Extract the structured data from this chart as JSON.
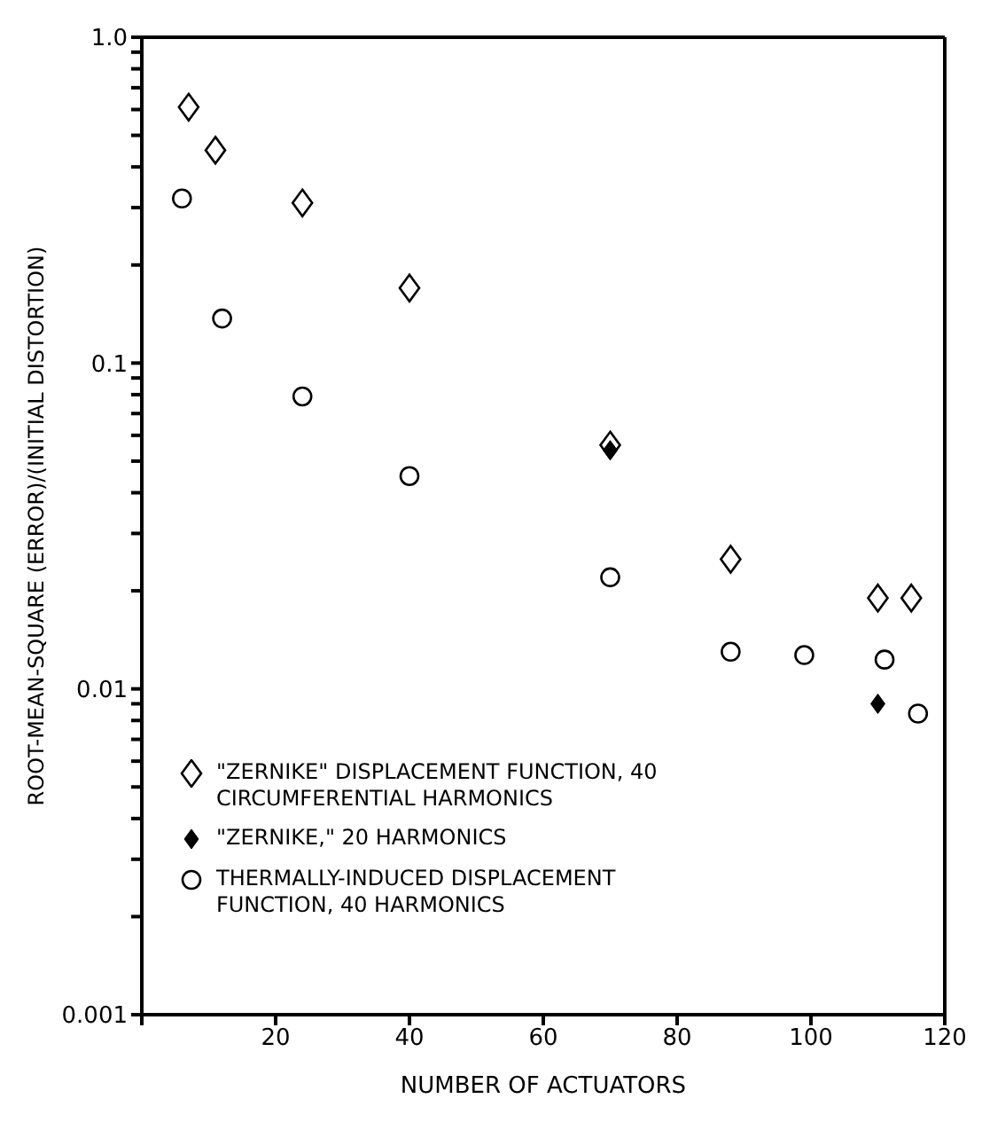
{
  "chart_data": {
    "type": "scatter",
    "xlabel": "NUMBER OF ACTUATORS",
    "ylabel": "ROOT-MEAN-SQUARE (ERROR)/(INITIAL DISTORTION)",
    "xlim": [
      0,
      120
    ],
    "xticks": [
      {
        "value": 0,
        "label": null
      },
      20,
      40,
      60,
      80,
      100,
      120
    ],
    "ylim": [
      0.001,
      1
    ],
    "yticks": [
      {
        "value": 0.001,
        "label": "0.001"
      },
      {
        "value": 0.002,
        "label": null
      },
      {
        "value": 0.003,
        "label": null
      },
      {
        "value": 0.004,
        "label": null
      },
      {
        "value": 0.005,
        "label": null
      },
      {
        "value": 0.006,
        "label": null
      },
      {
        "value": 0.007,
        "label": null
      },
      {
        "value": 0.008,
        "label": null
      },
      {
        "value": 0.009,
        "label": null
      },
      {
        "value": 0.01,
        "label": "0.01"
      },
      {
        "value": 0.02,
        "label": null
      },
      {
        "value": 0.03,
        "label": null
      },
      {
        "value": 0.04,
        "label": null
      },
      {
        "value": 0.05,
        "label": null
      },
      {
        "value": 0.06,
        "label": null
      },
      {
        "value": 0.07,
        "label": null
      },
      {
        "value": 0.08,
        "label": null
      },
      {
        "value": 0.09,
        "label": null
      },
      {
        "value": 0.1,
        "label": "0.1"
      },
      {
        "value": 0.2,
        "label": null
      },
      {
        "value": 0.3,
        "label": null
      },
      {
        "value": 0.4,
        "label": null
      },
      {
        "value": 0.5,
        "label": null
      },
      {
        "value": 0.6,
        "label": null
      },
      {
        "value": 0.7,
        "label": null
      },
      {
        "value": 0.8,
        "label": null
      },
      {
        "value": 0.9,
        "label": null
      },
      {
        "value": 1,
        "label": "1.0"
      }
    ],
    "log": "y",
    "grid": false,
    "legend": "bottom left",
    "series": [
      {
        "name": "\"ZERNIKE\" DISPLACEMENT FUNCTION, 40 CIRCUMFERENTIAL HARMONICS",
        "color": "#000000",
        "marker": "diamond",
        "x": [
          7,
          11,
          24,
          40,
          70,
          88,
          110,
          115
        ],
        "values": [
          0.61,
          0.45,
          0.31,
          0.17,
          0.056,
          0.025,
          0.019,
          0.019
        ]
      },
      {
        "name": "\"ZERNIKE,\" 20 HARMONICS",
        "color": "#000000",
        "marker": "diamond",
        "x": [
          70,
          110
        ],
        "values": [
          0.054,
          0.009
        ]
      },
      {
        "name": "THERMALLY-INDUCED DISPLACEMENT FUNCTION, 40 HARMONICS",
        "color": "#000000",
        "marker": "circle",
        "x": [
          6,
          12,
          24,
          40,
          70,
          88,
          99,
          111,
          116
        ],
        "values": [
          0.32,
          0.137,
          0.079,
          0.045,
          0.022,
          0.013,
          0.0127,
          0.0123,
          0.0084
        ]
      }
    ]
  }
}
